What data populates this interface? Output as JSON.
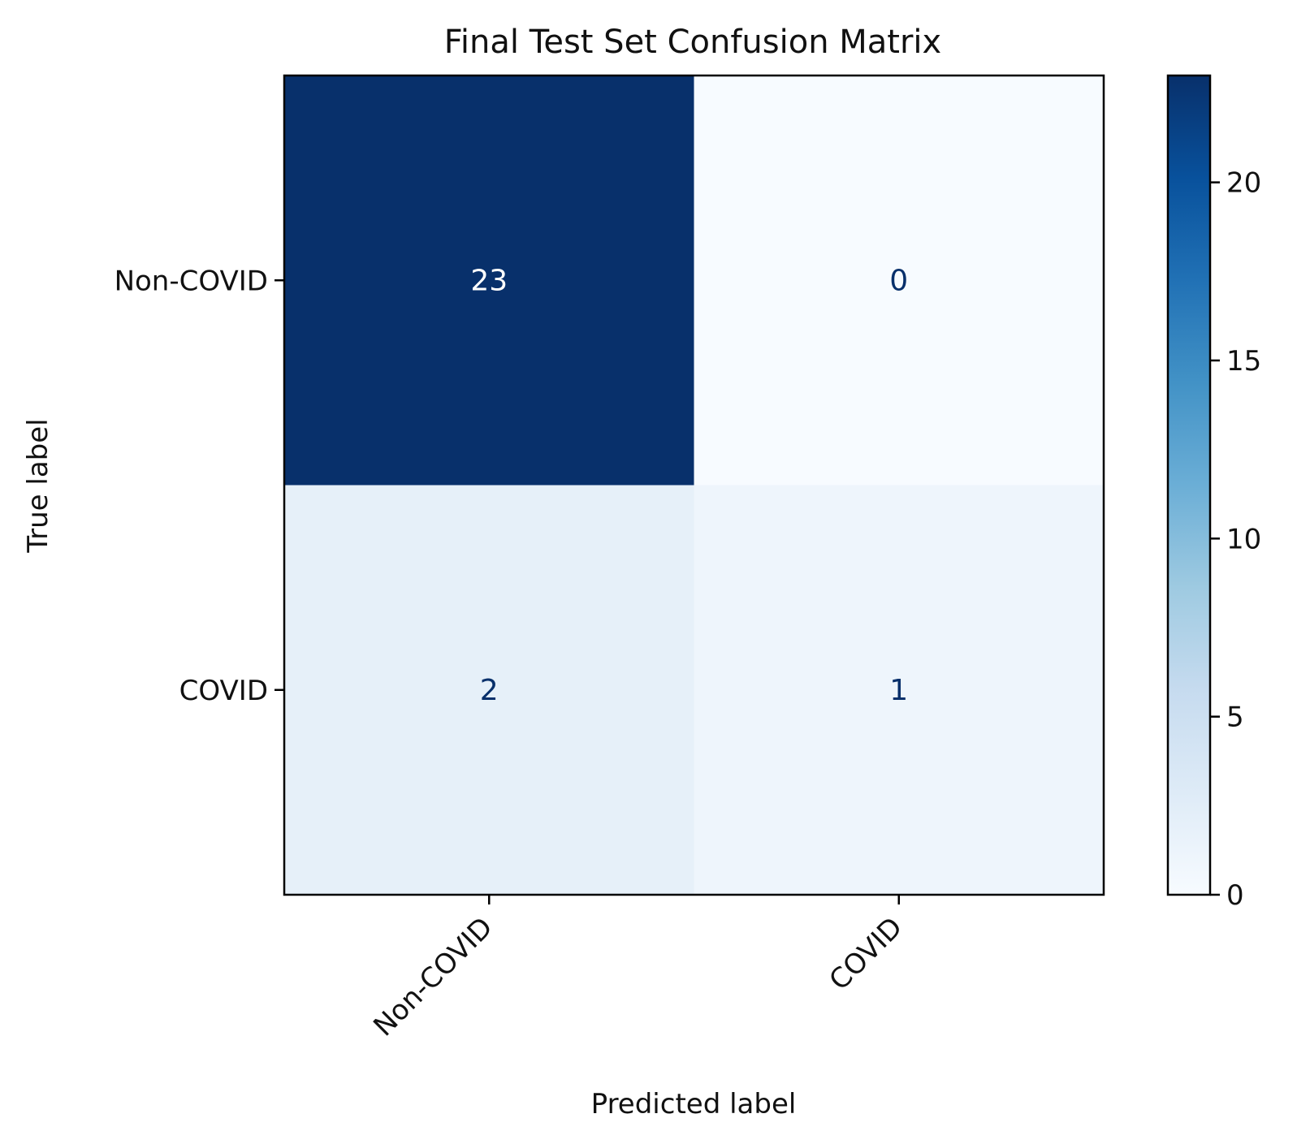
{
  "chart_data": {
    "type": "heatmap",
    "title": "Final Test Set Confusion Matrix",
    "xlabel": "Predicted label",
    "ylabel": "True label",
    "x_categories": [
      "Non-COVID",
      "COVID"
    ],
    "y_categories": [
      "Non-COVID",
      "COVID"
    ],
    "values": [
      [
        23,
        0
      ],
      [
        2,
        1
      ]
    ],
    "colorbar": {
      "min": 0,
      "max": 23,
      "ticks": [
        "0",
        "5",
        "10",
        "15",
        "20"
      ],
      "colormap": "Blues"
    },
    "colors": {
      "low": "#f7fbff",
      "high": "#08306b",
      "text_dark": "#08306b",
      "text_light": "#ffffff"
    },
    "grid": false
  }
}
